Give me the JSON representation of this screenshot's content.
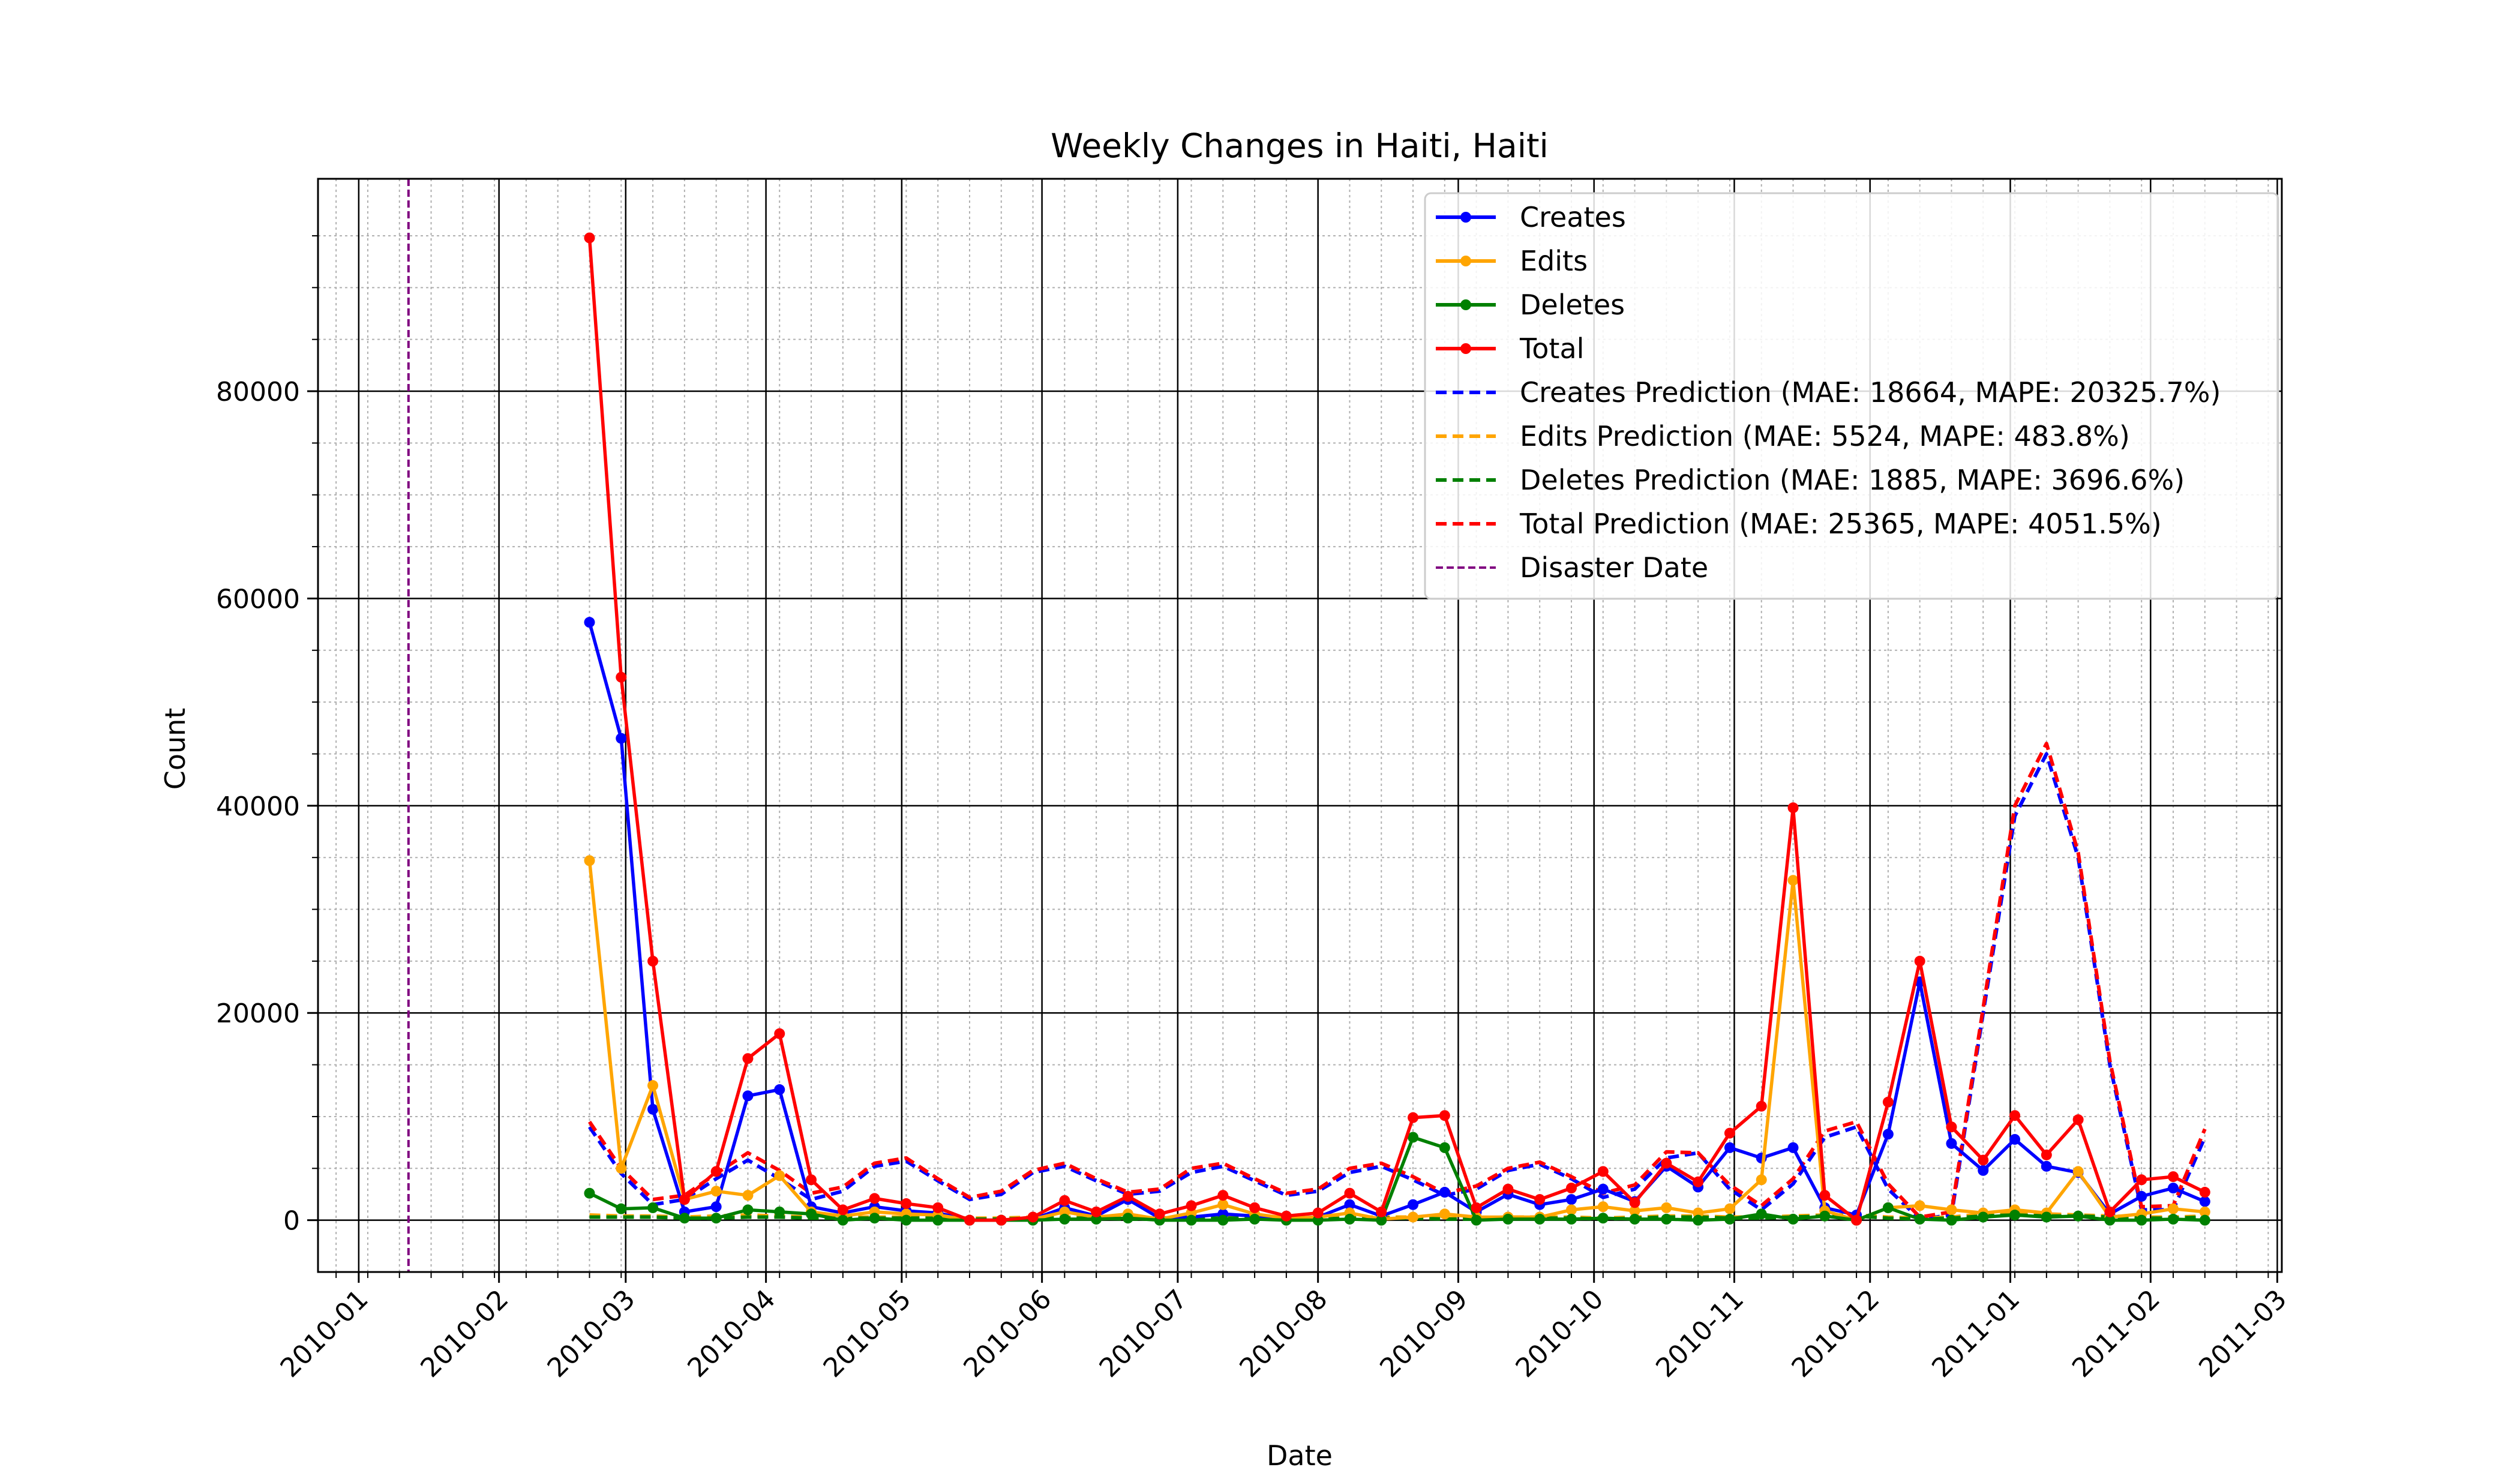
{
  "chart_data": {
    "type": "line",
    "title": "Weekly Changes in Haiti, Haiti",
    "xlabel": "Date",
    "ylabel": "Count",
    "x_ticks": [
      "2010-01",
      "2010-02",
      "2010-03",
      "2010-04",
      "2010-05",
      "2010-06",
      "2010-07",
      "2010-08",
      "2010-09",
      "2010-10",
      "2010-11",
      "2010-12",
      "2011-01",
      "2011-02",
      "2011-03"
    ],
    "x_range": [
      "2009-12-23",
      "2011-03-02"
    ],
    "y_ticks": [
      0,
      20000,
      40000,
      60000,
      80000
    ],
    "ylim": [
      -5000,
      100500
    ],
    "grid": true,
    "minor_grid": true,
    "legend_position": "upper right",
    "disaster_date": "2010-01-12",
    "x": [
      "2010-02-21",
      "2010-02-28",
      "2010-03-07",
      "2010-03-14",
      "2010-03-21",
      "2010-03-28",
      "2010-04-04",
      "2010-04-11",
      "2010-04-18",
      "2010-04-25",
      "2010-05-02",
      "2010-05-09",
      "2010-05-16",
      "2010-05-23",
      "2010-05-30",
      "2010-06-06",
      "2010-06-13",
      "2010-06-20",
      "2010-06-27",
      "2010-07-04",
      "2010-07-11",
      "2010-07-18",
      "2010-07-25",
      "2010-08-01",
      "2010-08-08",
      "2010-08-15",
      "2010-08-22",
      "2010-08-29",
      "2010-09-05",
      "2010-09-12",
      "2010-09-19",
      "2010-09-26",
      "2010-10-03",
      "2010-10-10",
      "2010-10-17",
      "2010-10-24",
      "2010-10-31",
      "2010-11-07",
      "2010-11-14",
      "2010-11-21",
      "2010-11-28",
      "2010-12-05",
      "2010-12-12",
      "2010-12-19",
      "2010-12-26",
      "2011-01-02",
      "2011-01-09",
      "2011-01-16",
      "2011-01-23",
      "2011-01-30",
      "2011-02-06",
      "2011-02-13"
    ],
    "series": [
      {
        "name": "Creates",
        "color": "#0000ff",
        "style": "solid-marker",
        "values": [
          57700,
          46500,
          10700,
          800,
          1300,
          12000,
          12600,
          1300,
          700,
          1300,
          900,
          700,
          0,
          0,
          100,
          1200,
          400,
          2000,
          200,
          300,
          600,
          400,
          200,
          300,
          1500,
          400,
          1500,
          2700,
          800,
          2500,
          1500,
          2000,
          3000,
          1800,
          5200,
          3200,
          7000,
          6000,
          7000,
          1200,
          500,
          8300,
          23000,
          7400,
          4800,
          7800,
          5200,
          4600,
          600,
          2300,
          3100,
          1800
        ]
      },
      {
        "name": "Edits",
        "color": "#ffa500",
        "style": "solid-marker",
        "values": [
          34700,
          5000,
          13000,
          2000,
          2800,
          2400,
          4300,
          800,
          400,
          800,
          600,
          500,
          0,
          0,
          100,
          800,
          300,
          600,
          100,
          700,
          1500,
          600,
          200,
          300,
          700,
          100,
          300,
          600,
          300,
          300,
          300,
          1000,
          1300,
          900,
          1200,
          700,
          1100,
          3900,
          32800,
          900,
          0,
          1200,
          1400,
          1000,
          700,
          1000,
          700,
          4700,
          300,
          600,
          1100,
          800
        ]
      },
      {
        "name": "Deletes",
        "color": "#008000",
        "style": "solid-marker",
        "values": [
          2600,
          1100,
          1200,
          200,
          200,
          1000,
          800,
          600,
          0,
          200,
          0,
          0,
          0,
          0,
          0,
          100,
          100,
          200,
          0,
          0,
          0,
          100,
          0,
          0,
          100,
          0,
          8000,
          7000,
          0,
          100,
          100,
          100,
          200,
          100,
          100,
          0,
          100,
          600,
          100,
          400,
          0,
          1200,
          100,
          0,
          300,
          500,
          300,
          400,
          0,
          0,
          100,
          0
        ]
      },
      {
        "name": "Total",
        "color": "#ff0000",
        "style": "solid-marker",
        "values": [
          94800,
          52400,
          25000,
          2000,
          4700,
          15600,
          18000,
          3900,
          1000,
          2100,
          1600,
          1200,
          0,
          0,
          300,
          1900,
          800,
          2300,
          600,
          1400,
          2400,
          1200,
          400,
          700,
          2600,
          800,
          9900,
          10100,
          1200,
          3000,
          2000,
          3100,
          4700,
          1700,
          5500,
          3700,
          8400,
          11000,
          39800,
          2400,
          0,
          11400,
          25000,
          9000,
          5800,
          10100,
          6300,
          9700,
          800,
          3900,
          4200,
          2700
        ]
      },
      {
        "name": "Creates Prediction (MAE: 18664, MAPE: 20325.7%)",
        "color": "#0000ff",
        "style": "dashed",
        "values": [
          9000,
          4500,
          1500,
          2000,
          4000,
          5800,
          4000,
          2000,
          2800,
          5200,
          5700,
          3800,
          2000,
          2500,
          4600,
          5200,
          3800,
          2500,
          2800,
          4600,
          5200,
          3800,
          2400,
          2800,
          4600,
          5200,
          3900,
          2400,
          3000,
          4800,
          5400,
          4000,
          2200,
          3000,
          6000,
          6500,
          3000,
          1000,
          3500,
          8000,
          9000,
          3000,
          100,
          500,
          20000,
          39000,
          45000,
          35000,
          15000,
          1000,
          1000,
          8000
        ]
      },
      {
        "name": "Edits Prediction (MAE: 5524, MAPE: 483.8%)",
        "color": "#ffa500",
        "style": "dashed",
        "values": [
          500,
          400,
          400,
          300,
          400,
          500,
          400,
          300,
          300,
          300,
          300,
          300,
          200,
          200,
          300,
          300,
          300,
          200,
          200,
          300,
          300,
          300,
          200,
          200,
          300,
          300,
          300,
          200,
          200,
          300,
          300,
          300,
          200,
          300,
          400,
          400,
          300,
          300,
          400,
          500,
          500,
          300,
          200,
          300,
          600,
          700,
          600,
          500,
          400,
          300,
          300,
          400
        ]
      },
      {
        "name": "Deletes Prediction (MAE: 1885, MAPE: 3696.6%)",
        "color": "#008000",
        "style": "dashed",
        "values": [
          300,
          300,
          300,
          200,
          200,
          300,
          300,
          200,
          200,
          200,
          200,
          200,
          100,
          100,
          200,
          200,
          200,
          100,
          100,
          200,
          200,
          200,
          100,
          100,
          200,
          200,
          200,
          100,
          100,
          200,
          200,
          200,
          100,
          200,
          300,
          300,
          200,
          200,
          300,
          400,
          400,
          200,
          100,
          200,
          400,
          500,
          400,
          400,
          300,
          200,
          200,
          300
        ]
      },
      {
        "name": "Total Prediction (MAE: 25365, MAPE: 4051.5%)",
        "color": "#ff0000",
        "style": "dashed",
        "values": [
          9500,
          5000,
          2000,
          2400,
          4500,
          6500,
          4800,
          2600,
          3200,
          5500,
          6000,
          4000,
          2200,
          2800,
          4800,
          5500,
          4000,
          2700,
          3000,
          5000,
          5500,
          4000,
          2600,
          3000,
          5000,
          5500,
          4200,
          2600,
          3300,
          5000,
          5600,
          4200,
          2600,
          3400,
          6600,
          6500,
          3400,
          1400,
          4000,
          8600,
          9500,
          3500,
          300,
          800,
          20500,
          40000,
          46000,
          35500,
          15400,
          1300,
          1400,
          8800
        ]
      }
    ],
    "legend": [
      "Creates",
      "Edits",
      "Deletes",
      "Total",
      "Creates Prediction (MAE: 18664, MAPE: 20325.7%)",
      "Edits Prediction (MAE: 5524, MAPE: 483.8%)",
      "Deletes Prediction (MAE: 1885, MAPE: 3696.6%)",
      "Total Prediction (MAE: 25365, MAPE: 4051.5%)",
      "Disaster Date"
    ],
    "colors": {
      "disaster": "#800080",
      "grid_major": "#000000",
      "grid_minor": "#b0b0b0"
    }
  }
}
